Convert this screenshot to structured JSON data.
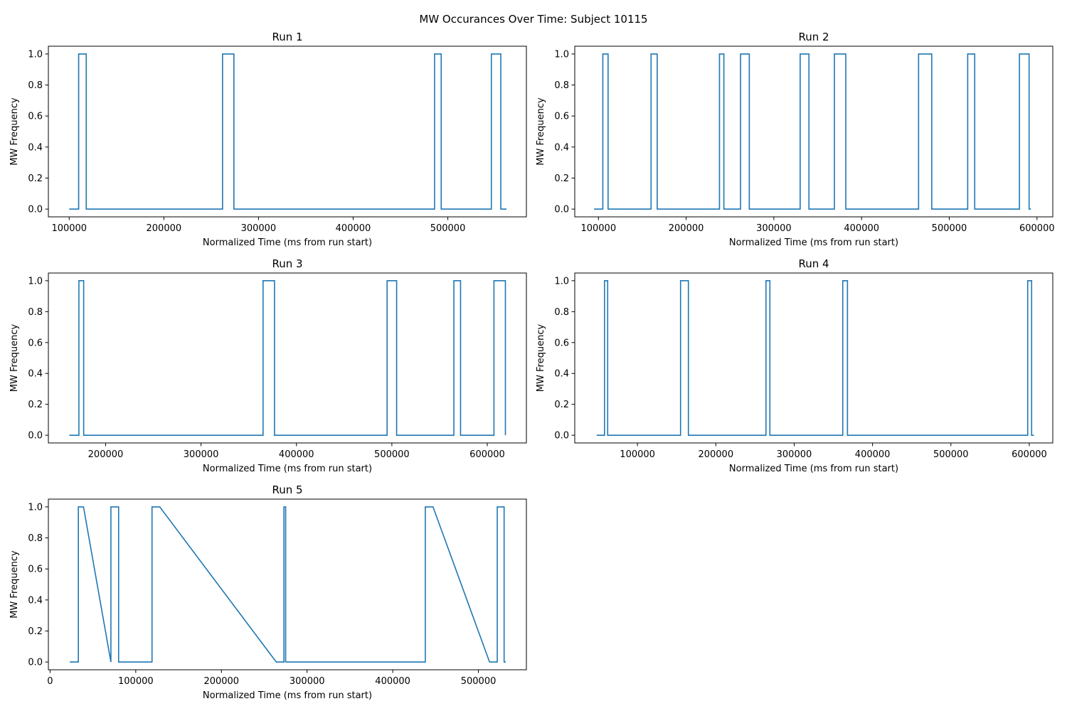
{
  "figure": {
    "title": "MW Occurances Over Time: Subject 10115"
  },
  "colors": {
    "line": "#1f77b4",
    "axis": "#000000",
    "background": "#ffffff"
  },
  "chart_data": [
    {
      "type": "line",
      "title": "Run 1",
      "xlabel": "Normalized Time (ms from run start)",
      "ylabel": "MW Frequency",
      "xlim": [
        78000,
        583000
      ],
      "ylim": [
        -0.05,
        1.05
      ],
      "xticks": [
        100000,
        200000,
        300000,
        400000,
        500000
      ],
      "xtick_labels": [
        "100000",
        "200000",
        "300000",
        "400000",
        "500000"
      ],
      "yticks": [
        0.0,
        0.2,
        0.4,
        0.6,
        0.8,
        1.0
      ],
      "ytick_labels": [
        "0.0",
        "0.2",
        "0.4",
        "0.6",
        "0.8",
        "1.0"
      ],
      "grid": false,
      "series": [
        {
          "x": [
            100000,
            110000,
            110000,
            118000,
            118000,
            262000,
            262000,
            274000,
            274000,
            486000,
            486000,
            493000,
            493000,
            546000,
            546000,
            556000,
            556000,
            562000
          ],
          "y": [
            0,
            0,
            1,
            1,
            0,
            0,
            1,
            1,
            0,
            0,
            1,
            1,
            0,
            0,
            1,
            1,
            0,
            0
          ]
        }
      ]
    },
    {
      "type": "line",
      "title": "Run 2",
      "xlabel": "Normalized Time (ms from run start)",
      "ylabel": "MW Frequency",
      "xlim": [
        73000,
        618000
      ],
      "ylim": [
        -0.05,
        1.05
      ],
      "xticks": [
        100000,
        200000,
        300000,
        400000,
        500000,
        600000
      ],
      "xtick_labels": [
        "100000",
        "200000",
        "300000",
        "400000",
        "500000",
        "600000"
      ],
      "yticks": [
        0.0,
        0.2,
        0.4,
        0.6,
        0.8,
        1.0
      ],
      "ytick_labels": [
        "0.0",
        "0.2",
        "0.4",
        "0.6",
        "0.8",
        "1.0"
      ],
      "grid": false,
      "series": [
        {
          "x": [
            95000,
            105000,
            105000,
            111000,
            111000,
            160000,
            160000,
            167000,
            167000,
            238000,
            238000,
            243000,
            243000,
            262000,
            262000,
            272000,
            272000,
            330000,
            330000,
            340000,
            340000,
            369000,
            369000,
            382000,
            382000,
            465000,
            465000,
            480000,
            480000,
            521000,
            521000,
            529000,
            529000,
            580000,
            580000,
            591000,
            591000,
            593000
          ],
          "y": [
            0,
            0,
            1,
            1,
            0,
            0,
            1,
            1,
            0,
            0,
            1,
            1,
            0,
            0,
            1,
            1,
            0,
            0,
            1,
            1,
            0,
            0,
            1,
            1,
            0,
            0,
            1,
            1,
            0,
            0,
            1,
            1,
            0,
            0,
            1,
            1,
            0,
            0
          ]
        }
      ]
    },
    {
      "type": "line",
      "title": "Run 3",
      "xlabel": "Normalized Time (ms from run start)",
      "ylabel": "MW Frequency",
      "xlim": [
        140000,
        641000
      ],
      "ylim": [
        -0.05,
        1.05
      ],
      "xticks": [
        200000,
        300000,
        400000,
        500000,
        600000
      ],
      "xtick_labels": [
        "200000",
        "300000",
        "400000",
        "500000",
        "600000"
      ],
      "yticks": [
        0.0,
        0.2,
        0.4,
        0.6,
        0.8,
        1.0
      ],
      "ytick_labels": [
        "0.0",
        "0.2",
        "0.4",
        "0.6",
        "0.8",
        "1.0"
      ],
      "grid": false,
      "series": [
        {
          "x": [
            162000,
            172000,
            172000,
            177000,
            177000,
            365000,
            365000,
            377000,
            377000,
            495000,
            495000,
            505000,
            505000,
            565000,
            565000,
            572000,
            572000,
            607000,
            607000,
            619000,
            619000
          ],
          "y": [
            0,
            0,
            1,
            1,
            0,
            0,
            1,
            1,
            0,
            0,
            1,
            1,
            0,
            0,
            1,
            1,
            0,
            0,
            1,
            1,
            0
          ]
        }
      ]
    },
    {
      "type": "line",
      "title": "Run 4",
      "xlabel": "Normalized Time (ms from run start)",
      "ylabel": "MW Frequency",
      "xlim": [
        20000,
        630000
      ],
      "ylim": [
        -0.05,
        1.05
      ],
      "xticks": [
        100000,
        200000,
        300000,
        400000,
        500000,
        600000
      ],
      "xtick_labels": [
        "100000",
        "200000",
        "300000",
        "400000",
        "500000",
        "600000"
      ],
      "yticks": [
        0.0,
        0.2,
        0.4,
        0.6,
        0.8,
        1.0
      ],
      "ytick_labels": [
        "0.0",
        "0.2",
        "0.4",
        "0.6",
        "0.8",
        "1.0"
      ],
      "grid": false,
      "series": [
        {
          "x": [
            48000,
            58000,
            58000,
            62000,
            62000,
            155000,
            155000,
            165000,
            165000,
            264000,
            264000,
            269000,
            269000,
            362000,
            362000,
            368000,
            368000,
            598000,
            598000,
            603000,
            603000,
            606000
          ],
          "y": [
            0,
            0,
            1,
            1,
            0,
            0,
            1,
            1,
            0,
            0,
            1,
            1,
            0,
            0,
            1,
            1,
            0,
            0,
            1,
            1,
            0,
            0
          ]
        }
      ]
    },
    {
      "type": "line",
      "title": "Run 5",
      "xlabel": "Normalized Time (ms from run start)",
      "ylabel": "MW Frequency",
      "xlim": [
        -2000,
        556000
      ],
      "ylim": [
        -0.05,
        1.05
      ],
      "xticks": [
        0,
        100000,
        200000,
        300000,
        400000,
        500000
      ],
      "xtick_labels": [
        "0",
        "100000",
        "200000",
        "300000",
        "400000",
        "500000"
      ],
      "yticks": [
        0.0,
        0.2,
        0.4,
        0.6,
        0.8,
        1.0
      ],
      "ytick_labels": [
        "0.0",
        "0.2",
        "0.4",
        "0.6",
        "0.8",
        "1.0"
      ],
      "grid": false,
      "series": [
        {
          "x": [
            23000,
            33000,
            33000,
            39000,
            71000,
            71000,
            80000,
            80000,
            119000,
            119000,
            128000,
            264000,
            273000,
            273000,
            275000,
            275000,
            438000,
            438000,
            447000,
            513000,
            522000,
            522000,
            530000,
            530000,
            532000
          ],
          "y": [
            0,
            0,
            1,
            1,
            0,
            1,
            1,
            0,
            0,
            1,
            1,
            0,
            0,
            1,
            1,
            0,
            0,
            1,
            1,
            0,
            0,
            1,
            1,
            0,
            0
          ]
        }
      ]
    }
  ]
}
